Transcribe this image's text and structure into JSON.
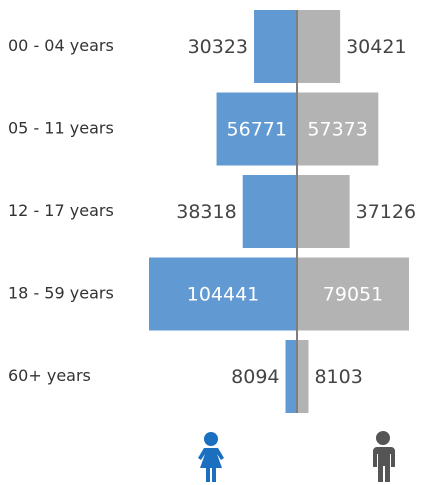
{
  "chart_data": {
    "type": "pyramid",
    "categories": [
      "00 - 04 years",
      "05 - 11 years",
      "12 - 17 years",
      "18 - 59 years",
      "60+ years"
    ],
    "series": [
      {
        "color": "#6199d2",
        "values": [
          30323,
          56771,
          38318,
          104441,
          8094
        ]
      },
      {
        "color": "#b3b3b3",
        "values": [
          30421,
          57373,
          37126,
          79051,
          8103
        ]
      }
    ]
  }
}
